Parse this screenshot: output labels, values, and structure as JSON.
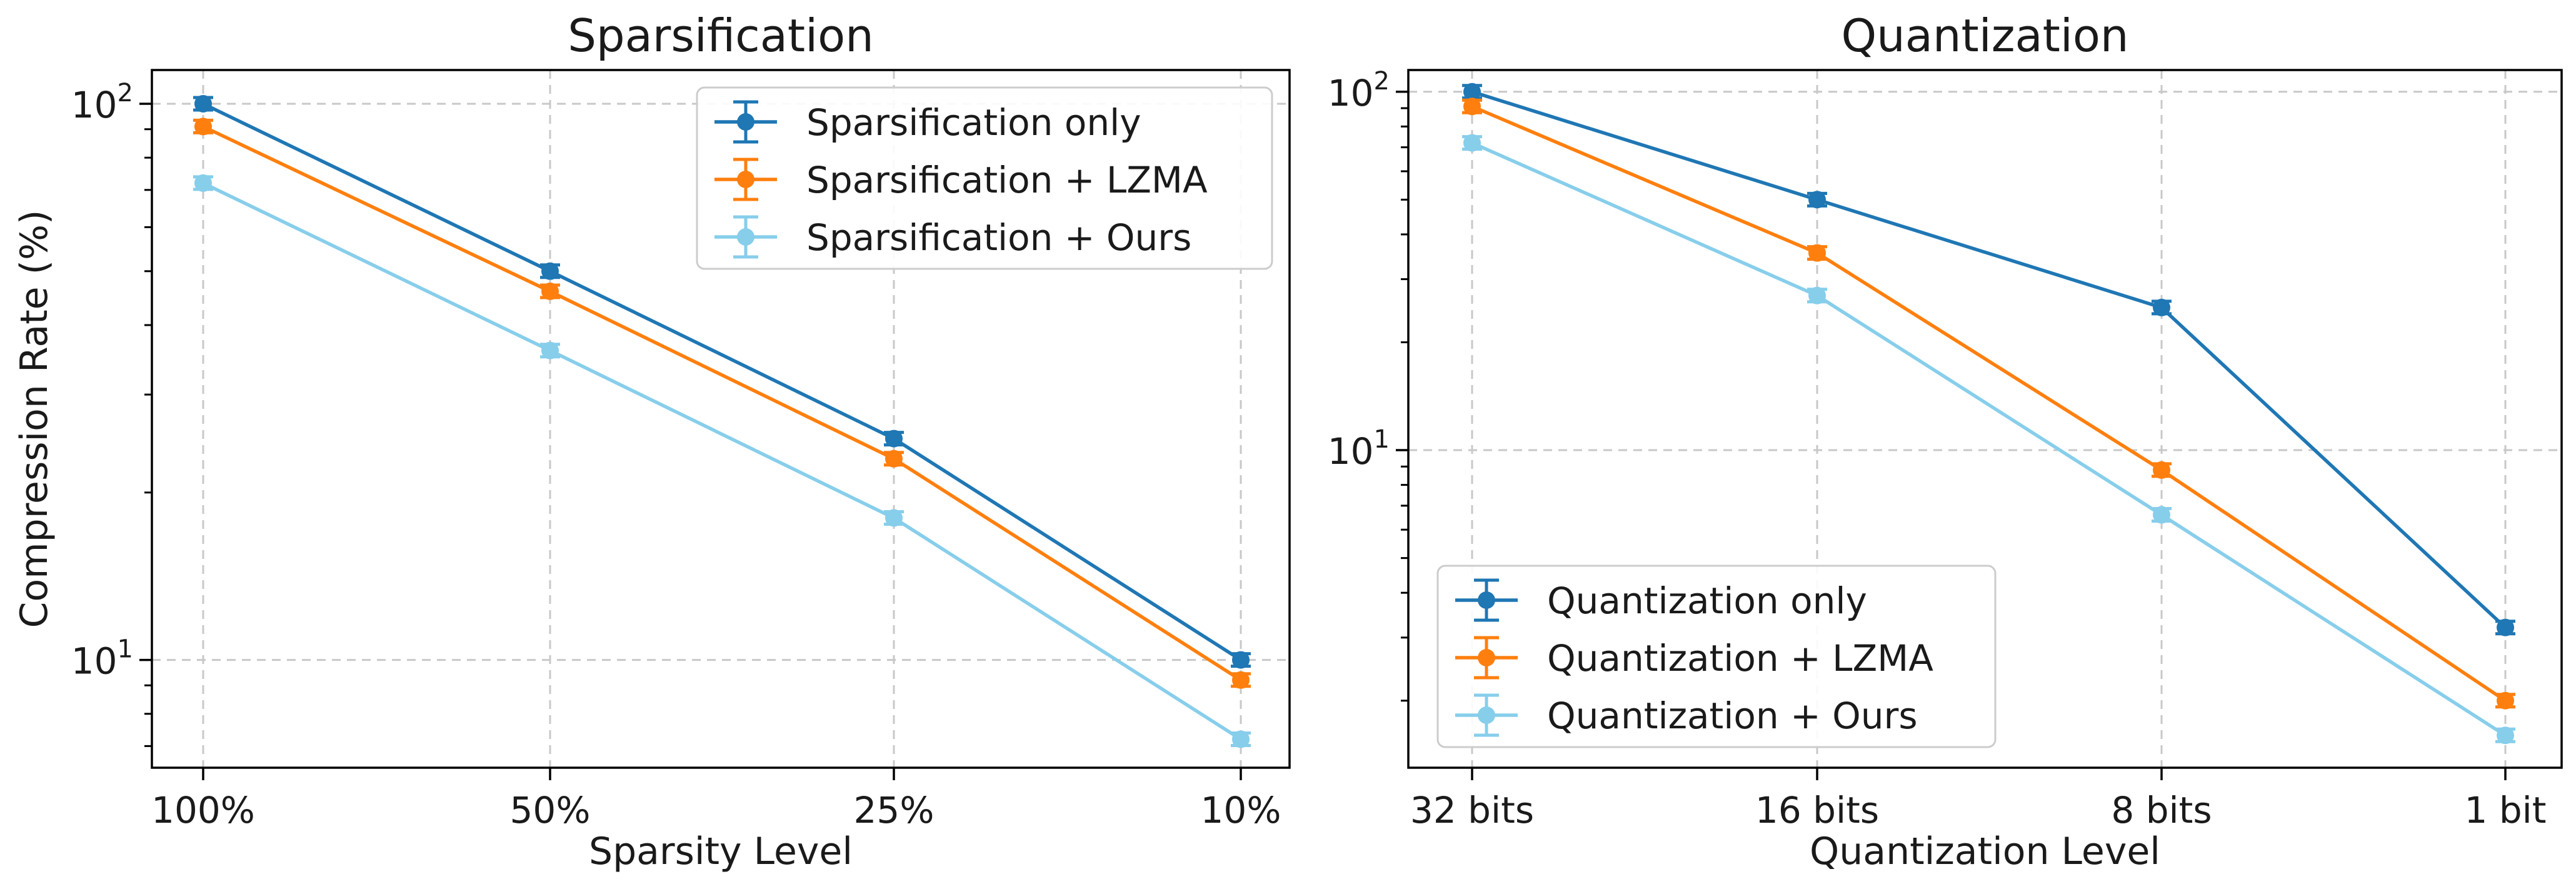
{
  "chart_data": [
    {
      "type": "line",
      "title": "Sparsification",
      "xlabel": "Sparsity Level",
      "ylabel": "Compression Rate (%)",
      "yscale": "log",
      "ylim": [
        6.4,
        115
      ],
      "categories": [
        "100%",
        "50%",
        "25%",
        "10%"
      ],
      "yticks": [
        {
          "value": 10,
          "base": "10",
          "exp": "1"
        },
        {
          "value": 100,
          "base": "10",
          "exp": "2"
        }
      ],
      "grid": true,
      "legend_position": "upper right",
      "series": [
        {
          "name": "Sparsification only",
          "color": "#1f77b4",
          "values": [
            100,
            50,
            25,
            10
          ]
        },
        {
          "name": "Sparsification + LZMA",
          "color": "#ff7f0e",
          "values": [
            91,
            46,
            23,
            9.2
          ]
        },
        {
          "name": "Sparsification + Ours",
          "color": "#87ceeb",
          "values": [
            72,
            36,
            18,
            7.2
          ]
        }
      ]
    },
    {
      "type": "line",
      "title": "Quantization",
      "xlabel": "Quantization Level",
      "ylabel": "",
      "yscale": "log",
      "ylim": [
        1.3,
        115
      ],
      "categories": [
        "32 bits",
        "16 bits",
        "8 bits",
        "1 bit"
      ],
      "yticks": [
        {
          "value": 10,
          "base": "10",
          "exp": "1"
        },
        {
          "value": 100,
          "base": "10",
          "exp": "2"
        }
      ],
      "grid": true,
      "legend_position": "lower left",
      "series": [
        {
          "name": "Quantization only",
          "color": "#1f77b4",
          "values": [
            100,
            50,
            25,
            3.2
          ]
        },
        {
          "name": "Quantization + LZMA",
          "color": "#ff7f0e",
          "values": [
            91,
            35.5,
            8.8,
            2.0
          ]
        },
        {
          "name": "Quantization + Ours",
          "color": "#87ceeb",
          "values": [
            72,
            27,
            6.6,
            1.6
          ]
        }
      ]
    }
  ]
}
